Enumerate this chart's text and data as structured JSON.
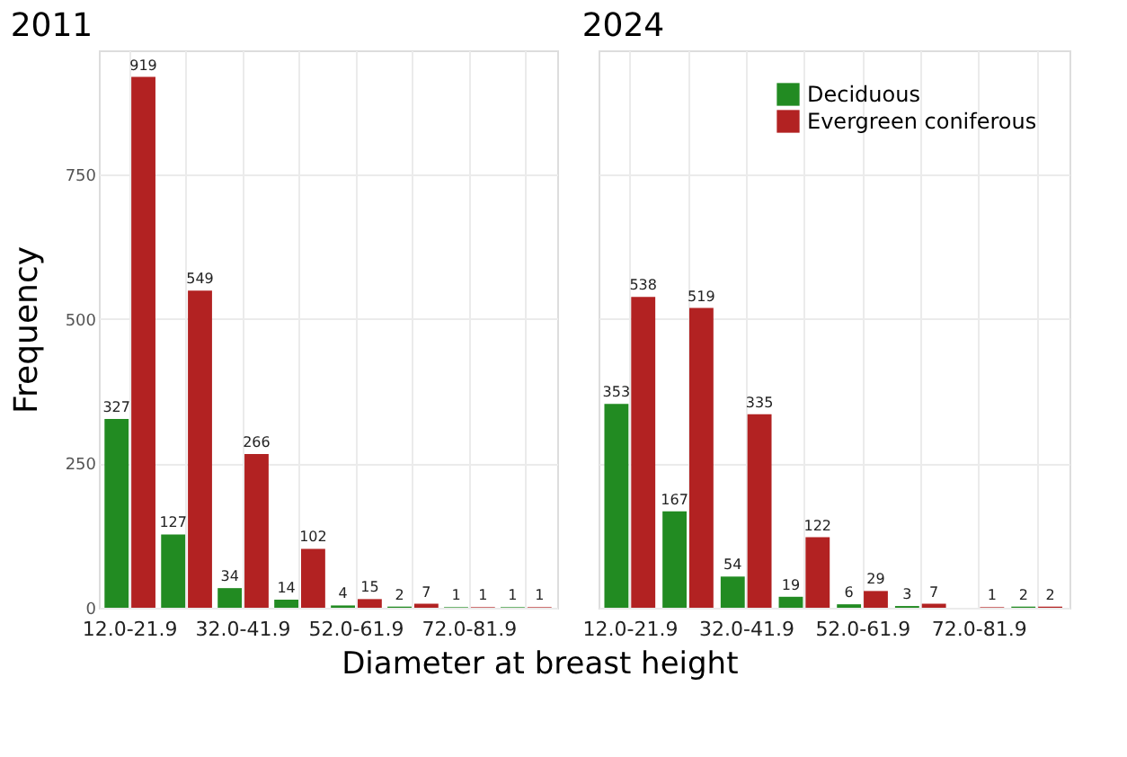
{
  "chart_data": [
    {
      "type": "bar",
      "title": "2011",
      "xlabel": "Diameter at breast height",
      "ylabel": "Frequency",
      "categories": [
        "12.0-21.9",
        null,
        "32.0-41.9",
        null,
        "52.0-61.9",
        null,
        "72.0-81.9",
        null
      ],
      "series": [
        {
          "color": "#228b22",
          "values": [
            327,
            127,
            34,
            14,
            4,
            2,
            1,
            1
          ]
        },
        {
          "color": "#b22222",
          "values": [
            919,
            549,
            266,
            102,
            15,
            7,
            1,
            1
          ]
        }
      ],
      "ylim": [
        0,
        965
      ],
      "yticks": [
        0,
        250,
        500,
        750
      ],
      "grid": true,
      "data_labels": true,
      "legend": false
    },
    {
      "type": "bar",
      "title": "2024",
      "categories": [
        "12.0-21.9",
        null,
        "32.0-41.9",
        null,
        "52.0-61.9",
        null,
        "72.0-81.9",
        null
      ],
      "series": [
        {
          "name": "Deciduous",
          "color": "#228b22",
          "values": [
            353,
            167,
            54,
            19,
            6,
            3,
            null,
            2
          ]
        },
        {
          "name": "Evergreen coniferous",
          "color": "#b22222",
          "values": [
            538,
            519,
            335,
            122,
            29,
            7,
            1,
            2
          ]
        }
      ],
      "ylim": [
        0,
        965
      ],
      "yticks": [
        0,
        250,
        500,
        750
      ],
      "grid": true,
      "data_labels": true,
      "legend": "top right",
      "tick_labels": "x"
    }
  ]
}
